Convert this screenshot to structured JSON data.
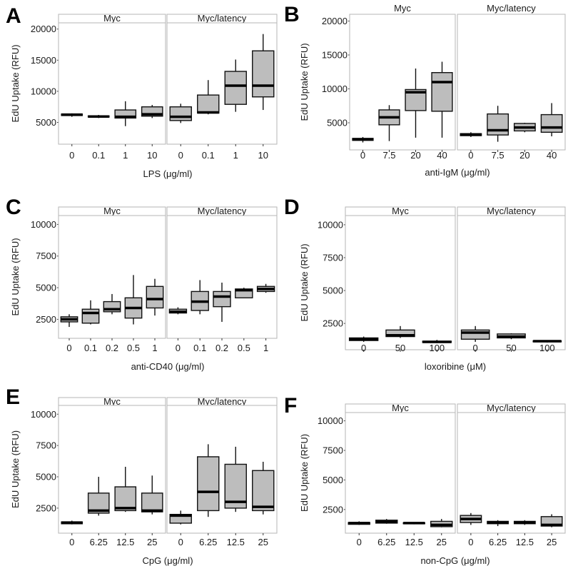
{
  "chart_data": [
    {
      "panel": "A",
      "type": "boxplot",
      "facets": [
        "Myc",
        "Myc/latency"
      ],
      "xlabel": "LPS (μg/ml)",
      "ylabel": "EdU Uptake (RFU)",
      "categories": [
        "0",
        "0.1",
        "1",
        "10"
      ],
      "yticks": [
        5000,
        10000,
        15000,
        20000
      ],
      "ylim": [
        1500,
        21000
      ],
      "boxes": [
        [
          [
            5900,
            6100,
            6250,
            6350,
            6450
          ],
          [
            5700,
            5850,
            5950,
            6050,
            6200
          ],
          [
            4400,
            5700,
            5900,
            7000,
            8400
          ],
          [
            5700,
            6000,
            6300,
            7500,
            7800
          ]
        ],
        [
          [
            4900,
            5300,
            5900,
            7500,
            8000
          ],
          [
            6300,
            6500,
            6600,
            9400,
            11800
          ],
          [
            6700,
            7900,
            10900,
            13200,
            15100
          ],
          [
            7000,
            9100,
            10900,
            16500,
            19200
          ]
        ]
      ]
    },
    {
      "panel": "B",
      "type": "boxplot",
      "facets": [
        "Myc",
        "Myc/latency"
      ],
      "xlabel": "anti-IgM (μg/ml)",
      "ylabel": "EdU Uptake (RFU)",
      "categories": [
        "0",
        "7.5",
        "20",
        "40"
      ],
      "yticks": [
        5000,
        10000,
        15000,
        20000
      ],
      "ylim": [
        1000,
        21000
      ],
      "boxes": [
        [
          [
            2100,
            2400,
            2550,
            2700,
            2900
          ],
          [
            2300,
            4700,
            5800,
            6900,
            7600
          ],
          [
            2800,
            6800,
            9500,
            9900,
            13000
          ],
          [
            2800,
            6700,
            11000,
            12400,
            14000
          ]
        ],
        [
          [
            2900,
            3100,
            3250,
            3400,
            3600
          ],
          [
            2200,
            3200,
            3900,
            6300,
            7500
          ],
          [
            3600,
            3800,
            4300,
            4900,
            5000
          ],
          [
            3000,
            3600,
            4300,
            6200,
            7900
          ]
        ]
      ]
    },
    {
      "panel": "C",
      "type": "boxplot",
      "facets": [
        "Myc",
        "Myc/latency"
      ],
      "xlabel": "anti-CD40 (μg/ml)",
      "ylabel": "EdU Uptake (RFU)",
      "categories": [
        "0",
        "0.1",
        "0.2",
        "0.5",
        "1"
      ],
      "yticks": [
        2500,
        5000,
        7500,
        10000
      ],
      "ylim": [
        1000,
        10700
      ],
      "boxes": [
        [
          [
            1900,
            2300,
            2500,
            2700,
            2900
          ],
          [
            2100,
            2200,
            3000,
            3300,
            4000
          ],
          [
            2900,
            3100,
            3300,
            3900,
            4500
          ],
          [
            2100,
            2600,
            3400,
            4200,
            6000
          ],
          [
            2800,
            3400,
            4100,
            5100,
            5700
          ]
        ],
        [
          [
            2900,
            3000,
            3100,
            3300,
            3450
          ],
          [
            2900,
            3200,
            3900,
            4700,
            5600
          ],
          [
            2300,
            3500,
            4300,
            4700,
            5400
          ],
          [
            4200,
            4200,
            4800,
            4900,
            5000
          ],
          [
            4600,
            4700,
            4900,
            5100,
            5300
          ]
        ]
      ]
    },
    {
      "panel": "D",
      "type": "boxplot",
      "facets": [
        "Myc",
        "Myc/latency"
      ],
      "xlabel": "loxoribine (μM)",
      "ylabel": "EdU Uptake (RFU)",
      "categories": [
        "0",
        "50",
        "100"
      ],
      "yticks": [
        2500,
        5000,
        7500,
        10000
      ],
      "ylim": [
        500,
        10700
      ],
      "boxes": [
        [
          [
            1100,
            1200,
            1300,
            1400,
            1500
          ],
          [
            1400,
            1500,
            1600,
            2000,
            2300
          ],
          [
            1000,
            1050,
            1100,
            1150,
            1250
          ]
        ],
        [
          [
            1100,
            1300,
            1800,
            2000,
            2300
          ],
          [
            1300,
            1400,
            1500,
            1700,
            1750
          ],
          [
            1050,
            1100,
            1150,
            1180,
            1220
          ]
        ]
      ]
    },
    {
      "panel": "E",
      "type": "boxplot",
      "facets": [
        "Myc",
        "Myc/latency"
      ],
      "xlabel": "CpG (μg/ml)",
      "ylabel": "EdU Uptake (RFU)",
      "categories": [
        "0",
        "6.25",
        "12.5",
        "25"
      ],
      "yticks": [
        2500,
        5000,
        7500,
        10000
      ],
      "ylim": [
        500,
        10700
      ],
      "boxes": [
        [
          [
            1200,
            1250,
            1350,
            1400,
            1500
          ],
          [
            1900,
            2100,
            2300,
            3700,
            5000
          ],
          [
            2200,
            2300,
            2500,
            4200,
            5800
          ],
          [
            2000,
            2200,
            2300,
            3700,
            5100
          ]
        ],
        [
          [
            1200,
            1300,
            1900,
            2000,
            2300
          ],
          [
            1800,
            2300,
            3800,
            6600,
            7600
          ],
          [
            2200,
            2500,
            3000,
            6000,
            7400
          ],
          [
            2000,
            2300,
            2600,
            5500,
            6200
          ]
        ]
      ]
    },
    {
      "panel": "F",
      "type": "boxplot",
      "facets": [
        "Myc",
        "Myc/latency"
      ],
      "xlabel": "non-CpG (μg/ml)",
      "ylabel": "EdU Uptake (RFU)",
      "categories": [
        "0",
        "6.25",
        "12.5",
        "25"
      ],
      "yticks": [
        2500,
        5000,
        7500,
        10000
      ],
      "ylim": [
        500,
        10700
      ],
      "boxes": [
        [
          [
            1200,
            1250,
            1350,
            1400,
            1500
          ],
          [
            1300,
            1350,
            1450,
            1600,
            1700
          ],
          [
            1250,
            1300,
            1350,
            1380,
            1400
          ],
          [
            1000,
            1050,
            1200,
            1500,
            1700
          ]
        ],
        [
          [
            1200,
            1400,
            1700,
            2000,
            2200
          ],
          [
            1100,
            1300,
            1400,
            1500,
            1600
          ],
          [
            1200,
            1300,
            1400,
            1500,
            1600
          ],
          [
            1000,
            1100,
            1200,
            1900,
            2100
          ]
        ]
      ]
    }
  ]
}
